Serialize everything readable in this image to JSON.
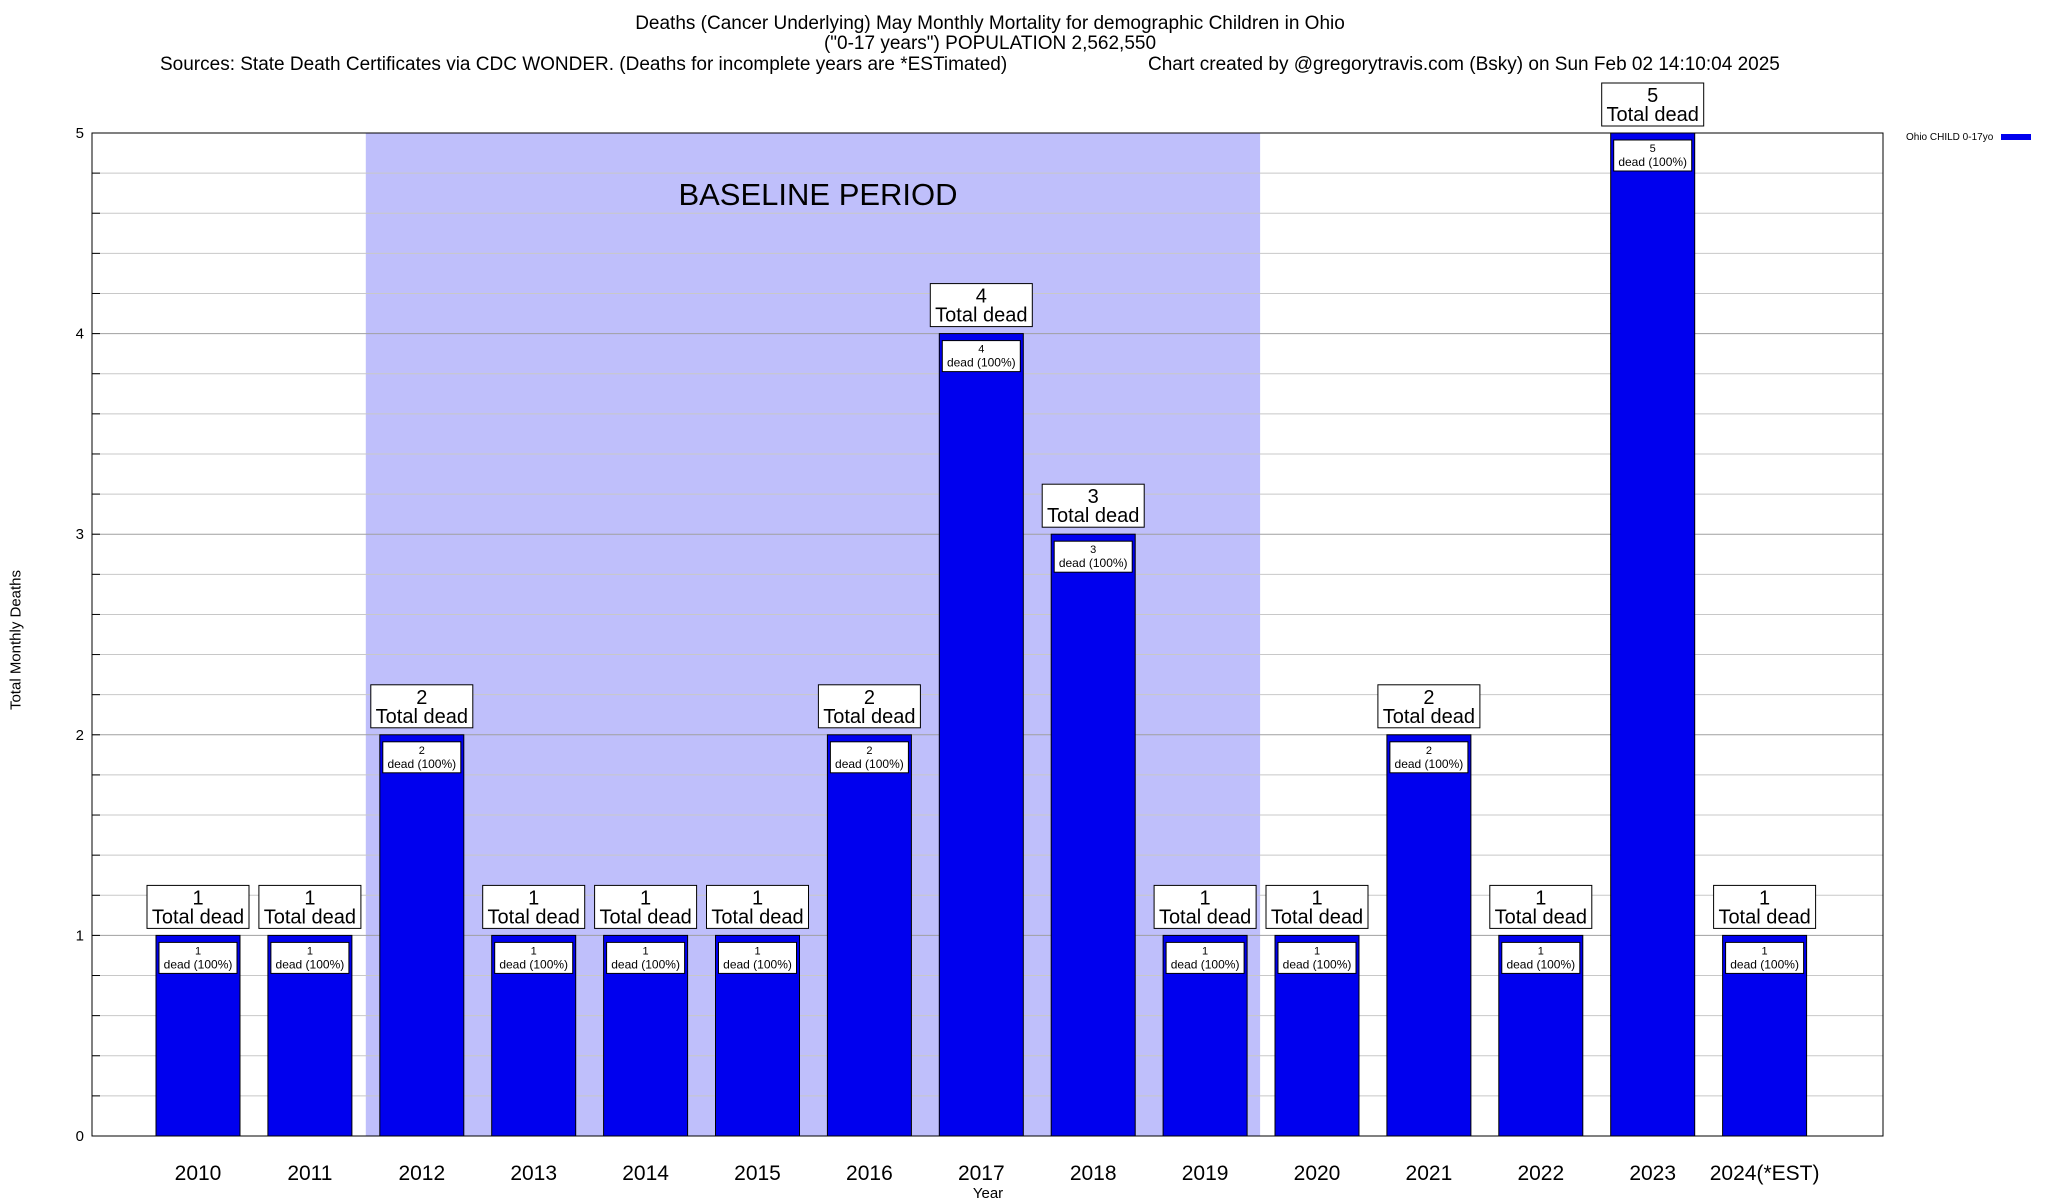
{
  "header": {
    "title_line1": "Deaths (Cancer Underlying) May Monthly Mortality for demographic Children in Ohio",
    "title_line2": "(\"0-17 years\") POPULATION 2,562,550",
    "sources": "Sources: State Death Certificates via CDC WONDER. (Deaths for incomplete years are *ESTimated)",
    "credit": "Chart created by @gregorytravis.com (Bsky) on Sun Feb 02 14:10:04 2025"
  },
  "legend": {
    "label": "Ohio CHILD 0-17yo"
  },
  "chart_data": {
    "type": "bar",
    "title": "Deaths (Cancer Underlying) May Monthly Mortality for demographic Children in Ohio",
    "xlabel": "Year",
    "ylabel": "Total Monthly Deaths",
    "ylim": [
      0,
      5
    ],
    "yticks": [
      0,
      1,
      2,
      3,
      4,
      5
    ],
    "grid": true,
    "legend_position": "top-right",
    "categories": [
      "2010",
      "2011",
      "2012",
      "2013",
      "2014",
      "2015",
      "2016",
      "2017",
      "2018",
      "2019",
      "2020",
      "2021",
      "2022",
      "2023",
      "2024(*EST)"
    ],
    "series": [
      {
        "name": "Ohio CHILD 0-17yo",
        "color": "#0000ee",
        "values": [
          1,
          1,
          2,
          1,
          1,
          1,
          2,
          4,
          3,
          1,
          1,
          2,
          1,
          5,
          1
        ]
      }
    ],
    "total_label": "Total dead",
    "inner_label_suffix": "dead (100%)",
    "baseline": {
      "label": "BASELINE PERIOD",
      "from": "2012",
      "to": "2019",
      "color": "#bfbffb"
    }
  }
}
